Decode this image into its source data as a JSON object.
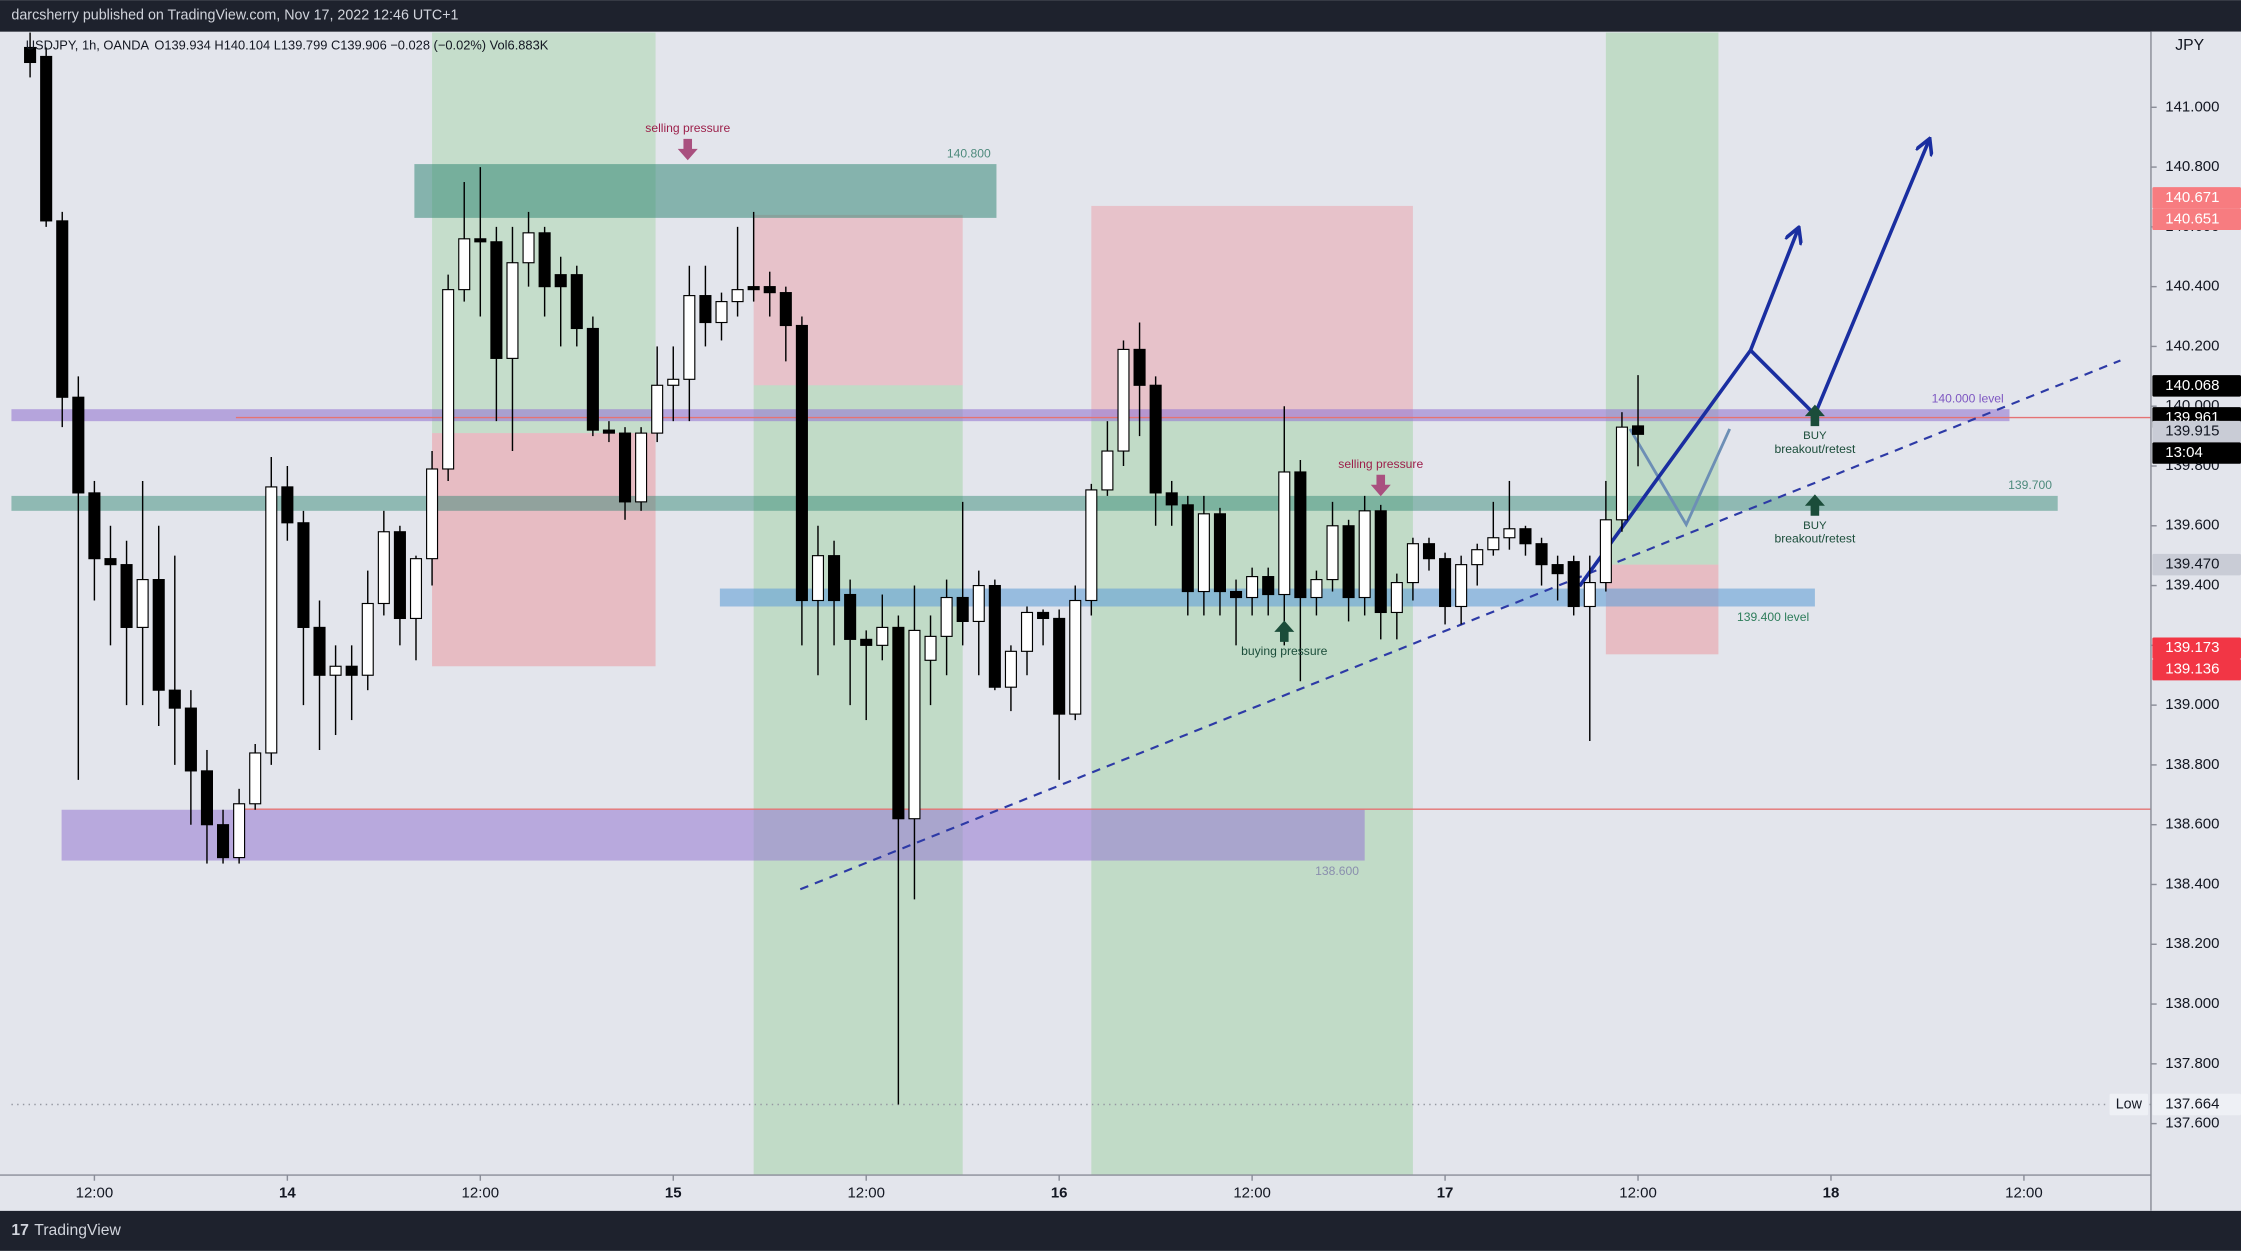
{
  "header": {
    "title": "darcsherry published on TradingView.com, Nov 17, 2022 12:46 UTC+1",
    "brand": "TradingView"
  },
  "chart_data": {
    "type": "candlestick",
    "symbol": "USDJPY, 1h, OANDA",
    "legend_values": "O139.934  H140.104  L139.799  C139.906  −0.028 (−0.02%)  Vol6.883K",
    "axis_unit": "JPY",
    "xlim": [
      -1.16,
      131.9
    ],
    "ylim": [
      137.428,
      141.253
    ],
    "xticks": [
      {
        "value": 4,
        "label": "12:00"
      },
      {
        "value": 16,
        "label": "14"
      },
      {
        "value": 28,
        "label": "12:00"
      },
      {
        "value": 40,
        "label": "15"
      },
      {
        "value": 52,
        "label": "12:00"
      },
      {
        "value": 64,
        "label": "16"
      },
      {
        "value": 76,
        "label": "12:00"
      },
      {
        "value": 88,
        "label": "17"
      },
      {
        "value": 100,
        "label": "12:00"
      },
      {
        "value": 112,
        "label": "18"
      },
      {
        "value": 124,
        "label": "12:00"
      }
    ],
    "yticks": [
      {
        "value": 137.6,
        "label": "137.600"
      },
      {
        "value": 137.8,
        "label": "137.800"
      },
      {
        "value": 138.0,
        "label": "138.000"
      },
      {
        "value": 138.2,
        "label": "138.200"
      },
      {
        "value": 138.4,
        "label": "138.400"
      },
      {
        "value": 138.6,
        "label": "138.600"
      },
      {
        "value": 138.8,
        "label": "138.800"
      },
      {
        "value": 139.0,
        "label": "139.000"
      },
      {
        "value": 139.2,
        "label": "139.200"
      },
      {
        "value": 139.4,
        "label": "139.400"
      },
      {
        "value": 139.6,
        "label": "139.600"
      },
      {
        "value": 139.8,
        "label": "139.800"
      },
      {
        "value": 140.0,
        "label": "140.000"
      },
      {
        "value": 140.2,
        "label": "140.200"
      },
      {
        "value": 140.4,
        "label": "140.400"
      },
      {
        "value": 140.6,
        "label": "140.600"
      },
      {
        "value": 140.8,
        "label": "140.800"
      },
      {
        "value": 141.0,
        "label": "141.000"
      }
    ],
    "up_color": "#ffffff",
    "down_color": "#000000",
    "open": [
      141.2,
      141.17,
      140.62,
      140.03,
      139.71,
      139.49,
      139.47,
      139.26,
      139.42,
      139.05,
      138.99,
      138.78,
      138.6,
      138.49,
      138.67,
      138.84,
      139.73,
      139.61,
      139.26,
      139.1,
      139.13,
      139.1,
      139.34,
      139.58,
      139.29,
      139.49,
      139.79,
      140.39,
      140.56,
      140.55,
      140.16,
      140.48,
      140.58,
      140.44,
      140.44,
      140.26,
      139.92,
      139.91,
      139.68,
      139.91,
      140.07,
      140.09,
      140.37,
      140.28,
      140.35,
      140.4,
      140.4,
      140.38,
      140.27,
      139.35,
      139.5,
      139.37,
      139.22,
      139.2,
      139.26,
      138.62,
      139.15,
      139.23,
      139.36,
      139.28,
      139.4,
      139.06,
      139.18,
      139.31,
      139.29,
      138.97,
      139.35,
      139.72,
      139.85,
      140.19,
      140.07,
      139.71,
      139.67,
      139.38,
      139.64,
      139.38,
      139.36,
      139.43,
      139.37,
      139.78,
      139.36,
      139.42,
      139.6,
      139.36,
      139.65,
      139.31,
      139.41,
      139.54,
      139.49,
      139.33,
      139.47,
      139.52,
      139.56,
      139.59,
      139.54,
      139.47,
      139.48,
      139.33,
      139.41,
      139.62,
      139.934
    ],
    "high": [
      141.25,
      141.2,
      140.65,
      140.1,
      139.75,
      139.6,
      139.55,
      139.75,
      139.6,
      139.5,
      139.05,
      138.85,
      138.65,
      138.72,
      138.87,
      139.83,
      139.8,
      139.65,
      139.35,
      139.2,
      139.2,
      139.45,
      139.65,
      139.6,
      139.5,
      139.85,
      140.44,
      140.75,
      140.8,
      140.6,
      140.6,
      140.65,
      140.6,
      140.5,
      140.47,
      140.3,
      139.95,
      139.93,
      139.93,
      140.2,
      140.2,
      140.47,
      140.47,
      140.38,
      140.6,
      140.65,
      140.45,
      140.4,
      140.3,
      139.6,
      139.55,
      139.42,
      139.25,
      139.37,
      139.3,
      139.4,
      139.3,
      139.42,
      139.68,
      139.45,
      139.42,
      139.2,
      139.33,
      139.32,
      139.32,
      139.4,
      139.74,
      139.95,
      140.22,
      140.28,
      140.1,
      139.75,
      139.7,
      139.7,
      139.66,
      139.42,
      139.46,
      139.46,
      140.0,
      139.82,
      139.45,
      139.68,
      139.62,
      139.7,
      139.67,
      139.44,
      139.56,
      139.56,
      139.51,
      139.5,
      139.54,
      139.68,
      139.75,
      139.6,
      139.56,
      139.5,
      139.5,
      139.5,
      139.75,
      139.98,
      140.104
    ],
    "low": [
      141.1,
      140.6,
      139.93,
      138.75,
      139.35,
      139.2,
      139.0,
      139.0,
      138.93,
      138.8,
      138.6,
      138.47,
      138.47,
      138.47,
      138.65,
      138.8,
      139.55,
      139.0,
      138.85,
      138.9,
      138.95,
      139.05,
      139.3,
      139.2,
      139.15,
      139.4,
      139.75,
      140.35,
      140.3,
      139.95,
      139.85,
      140.4,
      140.3,
      140.2,
      140.2,
      139.9,
      139.88,
      139.62,
      139.65,
      139.88,
      139.95,
      139.95,
      140.2,
      140.22,
      140.3,
      140.35,
      140.3,
      140.15,
      139.2,
      139.1,
      139.2,
      139.0,
      138.95,
      139.15,
      137.664,
      138.35,
      139.0,
      139.1,
      139.2,
      139.1,
      139.05,
      138.98,
      139.1,
      139.2,
      138.75,
      138.95,
      139.3,
      139.7,
      139.8,
      139.9,
      139.6,
      139.6,
      139.3,
      139.3,
      139.3,
      139.2,
      139.3,
      139.3,
      139.2,
      139.08,
      139.3,
      139.38,
      139.28,
      139.3,
      139.22,
      139.22,
      139.35,
      139.45,
      139.27,
      139.27,
      139.4,
      139.5,
      139.52,
      139.5,
      139.4,
      139.35,
      139.3,
      138.88,
      139.38,
      139.58,
      139.799
    ],
    "close": [
      141.15,
      140.62,
      140.03,
      139.71,
      139.49,
      139.47,
      139.26,
      139.42,
      139.05,
      138.99,
      138.78,
      138.6,
      138.49,
      138.67,
      138.84,
      139.73,
      139.61,
      139.26,
      139.1,
      139.13,
      139.1,
      139.34,
      139.58,
      139.29,
      139.49,
      139.79,
      140.39,
      140.56,
      140.55,
      140.16,
      140.48,
      140.58,
      140.4,
      140.4,
      140.26,
      139.92,
      139.91,
      139.68,
      139.91,
      140.07,
      140.09,
      140.37,
      140.28,
      140.35,
      140.39,
      140.39,
      140.38,
      140.27,
      139.35,
      139.5,
      139.35,
      139.22,
      139.2,
      139.26,
      138.62,
      139.25,
      139.23,
      139.36,
      139.28,
      139.4,
      139.06,
      139.18,
      139.31,
      139.29,
      138.97,
      139.35,
      139.72,
      139.85,
      140.19,
      140.07,
      139.71,
      139.67,
      139.38,
      139.64,
      139.38,
      139.36,
      139.43,
      139.37,
      139.78,
      139.36,
      139.42,
      139.6,
      139.36,
      139.65,
      139.31,
      139.41,
      139.54,
      139.49,
      139.33,
      139.47,
      139.52,
      139.56,
      139.59,
      139.54,
      139.47,
      139.44,
      139.33,
      139.41,
      139.62,
      139.93,
      139.906
    ],
    "zones": [
      {
        "x0": 25.0,
        "x1": 38.9,
        "y0": 139.91,
        "y1": 141.25,
        "color": "rgba(120,200,120,0.28)"
      },
      {
        "x0": 25.0,
        "x1": 38.9,
        "y0": 139.13,
        "y1": 139.91,
        "color": "rgba(240,120,130,0.38)"
      },
      {
        "x0": 45.0,
        "x1": 58.0,
        "y0": 140.07,
        "y1": 140.64,
        "color": "rgba(240,120,130,0.32)"
      },
      {
        "x0": 45.0,
        "x1": 58.0,
        "y0": 137.43,
        "y1": 140.07,
        "color": "rgba(120,200,120,0.32)"
      },
      {
        "x0": 66.0,
        "x1": 86.0,
        "y0": 139.96,
        "y1": 140.67,
        "color": "rgba(240,120,130,0.32)"
      },
      {
        "x0": 66.0,
        "x1": 86.0,
        "y0": 137.43,
        "y1": 139.96,
        "color": "rgba(120,200,120,0.32)"
      },
      {
        "x0": 98.0,
        "x1": 105.0,
        "y0": 139.47,
        "y1": 141.25,
        "color": "rgba(120,200,120,0.32)"
      },
      {
        "x0": 98.0,
        "x1": 105.0,
        "y0": 139.17,
        "y1": 139.47,
        "color": "rgba(240,120,130,0.38)"
      },
      {
        "x0": 23.9,
        "x1": 60.1,
        "y0": 140.63,
        "y1": 140.81,
        "color": "rgba(40,130,110,0.5)",
        "label": "140.800",
        "label_color": "#4d8a7c",
        "label_side": "above"
      },
      {
        "x0": -1.16,
        "x1": 123.1,
        "y0": 139.95,
        "y1": 139.99,
        "color": "rgba(150,120,210,0.6)",
        "label": "140.000 level",
        "label_color": "#7e57c2",
        "label_side": "above"
      },
      {
        "x0": -1.16,
        "x1": 126.1,
        "y0": 139.65,
        "y1": 139.7,
        "color": "rgba(40,130,110,0.45)",
        "label": "139.700",
        "label_color": "#4d8a7c",
        "label_side": "above"
      },
      {
        "x0": 42.9,
        "x1": 111.0,
        "y0": 139.33,
        "y1": 139.39,
        "color": "rgba(100,160,215,0.6)",
        "label": "139.400 level",
        "label_color": "#2e7d5b",
        "label_side": "below"
      },
      {
        "x0": 1.96,
        "x1": 83.0,
        "y0": 138.48,
        "y1": 138.65,
        "color": "rgba(150,120,210,0.55)",
        "label": "138.600",
        "label_color": "#8a8fae",
        "label_side": "below"
      }
    ],
    "lines": [
      {
        "x": [
          12.8,
          131.9
        ],
        "y": [
          139.962,
          139.962
        ],
        "color": "#e57373",
        "width": 1,
        "dash": "none"
      },
      {
        "x": [
          12.8,
          131.9
        ],
        "y": [
          138.652,
          138.652
        ],
        "color": "#e57373",
        "width": 1,
        "dash": "none"
      },
      {
        "x": [
          -1.16,
          131.9
        ],
        "y": [
          137.664,
          137.664
        ],
        "color": "#9598a1",
        "width": 1,
        "dash": "1 3"
      },
      {
        "x": [
          47.9,
          130.0
        ],
        "y": [
          138.384,
          140.153
        ],
        "color": "#2d3aa6",
        "width": 1.5,
        "dash": "6 5"
      },
      {
        "x": [
          99.5,
          103.0,
          105.7
        ],
        "y": [
          139.924,
          139.604,
          139.924
        ],
        "color": "#6d8fb5",
        "width": 2,
        "dash": "none"
      },
      {
        "x": [
          96.36,
          107.0,
          109.96
        ],
        "y": [
          139.398,
          140.187,
          140.593
        ],
        "color": "#1a2ea0",
        "width": 2.5,
        "dash": "none",
        "arrow": true
      },
      {
        "x": [
          107.0,
          111.0,
          118.1
        ],
        "y": [
          140.187,
          139.972,
          140.89
        ],
        "color": "#1a2ea0",
        "width": 2.5,
        "dash": "none",
        "arrow": true
      }
    ],
    "annotations": [
      {
        "lines": [
          "selling pressure"
        ],
        "x": 40.9,
        "y": 140.928,
        "color": "#9c1f4a",
        "arrow": "down",
        "arrow_color": "#a9507f"
      },
      {
        "lines": [
          "selling pressure"
        ],
        "x": 84.0,
        "y": 139.804,
        "color": "#9c1f4a",
        "arrow": "down",
        "arrow_color": "#a9507f"
      },
      {
        "lines": [
          "buying pressure"
        ],
        "x": 78.0,
        "y": 139.178,
        "color": "#1b4d3a",
        "arrow": "up",
        "arrow_color": "#1b4d3a"
      },
      {
        "lines": [
          "BUY",
          "breakout/retest"
        ],
        "x": 111.0,
        "y": 139.9,
        "color": "#1b4d3a",
        "arrow": "up",
        "arrow_color": "#1b4d3a"
      },
      {
        "lines": [
          "BUY",
          "breakout/retest"
        ],
        "x": 111.0,
        "y": 139.6,
        "color": "#1b4d3a",
        "arrow": "up",
        "arrow_color": "#1b4d3a"
      }
    ],
    "price_tags": [
      {
        "value": 140.671,
        "label": "140.671",
        "bg": "#f77c80",
        "color": "#ffffff"
      },
      {
        "value": 140.651,
        "label": "140.651",
        "bg": "#f77c80",
        "color": "#ffffff"
      },
      {
        "value": 140.068,
        "label": "140.068",
        "bg": "#000000",
        "color": "#ffffff"
      },
      {
        "value": 139.961,
        "label": "139.961",
        "bg": "#000000",
        "color": "#ffffff"
      },
      {
        "value": 139.915,
        "label": "139.915",
        "bg": "#c9ccd6",
        "color": "#131722"
      },
      {
        "label": "13:04",
        "bg": "#000000",
        "color": "#ffffff"
      },
      {
        "value": 139.47,
        "label": "139.470",
        "bg": "#c9ccd6",
        "color": "#131722"
      },
      {
        "value": 139.173,
        "label": "139.173",
        "bg": "#f23645",
        "color": "#ffffff"
      },
      {
        "value": 139.136,
        "label": "139.136",
        "bg": "#f23645",
        "color": "#ffffff"
      },
      {
        "value": 137.664,
        "label": "137.664",
        "bg": "#eef0f5",
        "color": "#131722",
        "title": "Low"
      }
    ]
  }
}
